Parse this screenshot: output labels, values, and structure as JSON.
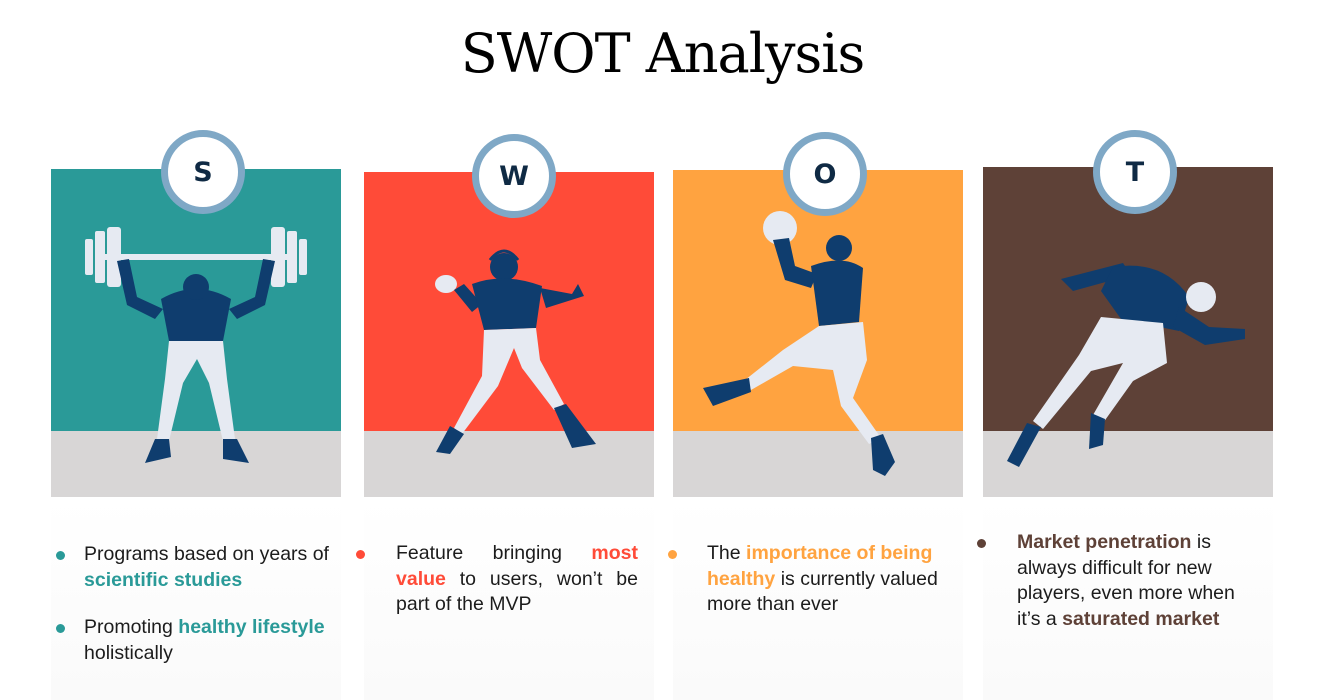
{
  "title": "SWOT Analysis",
  "colors": {
    "s": "#2a9a98",
    "w": "#ff4b38",
    "o": "#ffa340",
    "t": "#5e4137",
    "floor": "#d8d6d6",
    "badge_ring": "#7fa8c6",
    "figure_navy": "#0f3d6e",
    "figure_light": "#e6eaf2"
  },
  "quadrants": [
    {
      "letter": "S",
      "illustration": "weightlifter-icon",
      "bullets": [
        {
          "pre": "Programs based on years of ",
          "highlight": "scientific studies",
          "post": ""
        },
        {
          "pre": "Promoting ",
          "highlight": "healthy lifestyle",
          "post": " holistically"
        }
      ]
    },
    {
      "letter": "W",
      "illustration": "football-player-icon",
      "bullets": [
        {
          "pre": "Feature bringing ",
          "highlight": "most value",
          "post": " to users, won’t be part of the MVP"
        }
      ]
    },
    {
      "letter": "O",
      "illustration": "basketball-player-icon",
      "bullets": [
        {
          "pre": "The ",
          "highlight": "importance of being healthy",
          "post": " is currently valued more than ever"
        }
      ]
    },
    {
      "letter": "T",
      "illustration": "sprinter-icon",
      "bullets": [
        {
          "pre": "",
          "highlight": "Market penetration",
          "post": " is always difficult for new players, even more when it’s a ",
          "highlight2": "saturated market"
        }
      ]
    }
  ]
}
